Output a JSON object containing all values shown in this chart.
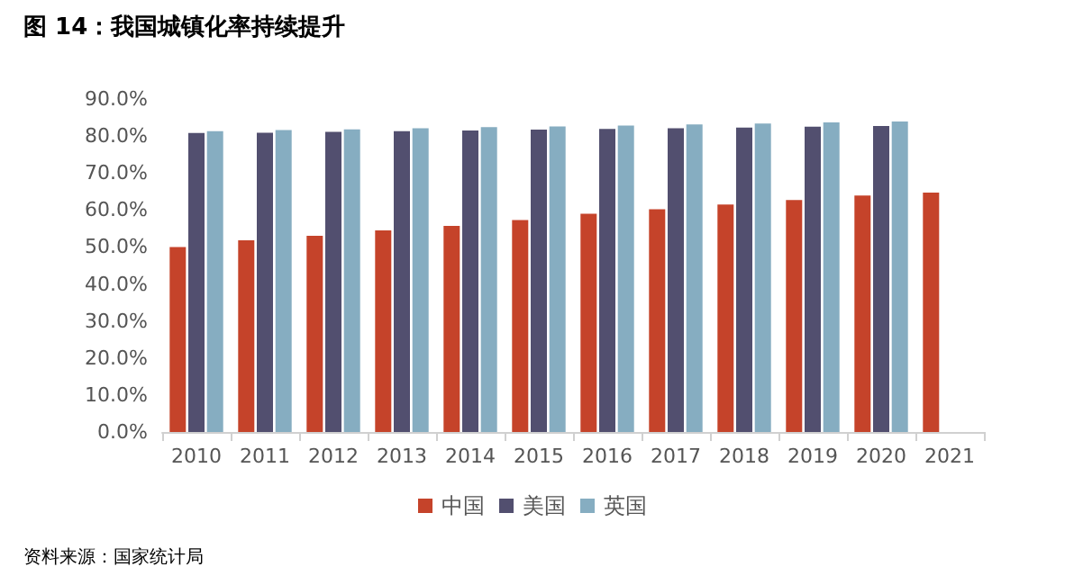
{
  "chart_data": {
    "type": "bar",
    "title": "图 14：我国城镇化率持续提升",
    "annotations": [
      "资料来源：国家统计局"
    ],
    "categories": [
      "2010",
      "2011",
      "2012",
      "2013",
      "2014",
      "2015",
      "2016",
      "2017",
      "2018",
      "2019",
      "2020",
      "2021"
    ],
    "series": [
      {
        "name": "中国",
        "color": "#c5432a",
        "values": [
          50.0,
          51.8,
          53.0,
          54.5,
          55.7,
          57.3,
          59.0,
          60.2,
          61.5,
          62.7,
          63.9,
          64.7
        ]
      },
      {
        "name": "美国",
        "color": "#524f6f",
        "values": [
          80.8,
          80.9,
          81.1,
          81.3,
          81.5,
          81.7,
          81.9,
          82.1,
          82.3,
          82.5,
          82.7,
          null
        ]
      },
      {
        "name": "英国",
        "color": "#86adc1",
        "values": [
          81.3,
          81.6,
          81.8,
          82.1,
          82.4,
          82.6,
          82.8,
          83.1,
          83.4,
          83.7,
          83.9,
          null
        ]
      }
    ],
    "ylim": [
      0,
      90
    ],
    "yticks": [
      {
        "value": 0,
        "label": "0.0%"
      },
      {
        "value": 10,
        "label": "10.0%"
      },
      {
        "value": 20,
        "label": "20.0%"
      },
      {
        "value": 30,
        "label": "30.0%"
      },
      {
        "value": 40,
        "label": "40.0%"
      },
      {
        "value": 50,
        "label": "50.0%"
      },
      {
        "value": 60,
        "label": "60.0%"
      },
      {
        "value": 70,
        "label": "70.0%"
      },
      {
        "value": 80,
        "label": "80.0%"
      },
      {
        "value": 90,
        "label": "90.0%"
      }
    ],
    "grid": false,
    "legend": "bottom"
  }
}
